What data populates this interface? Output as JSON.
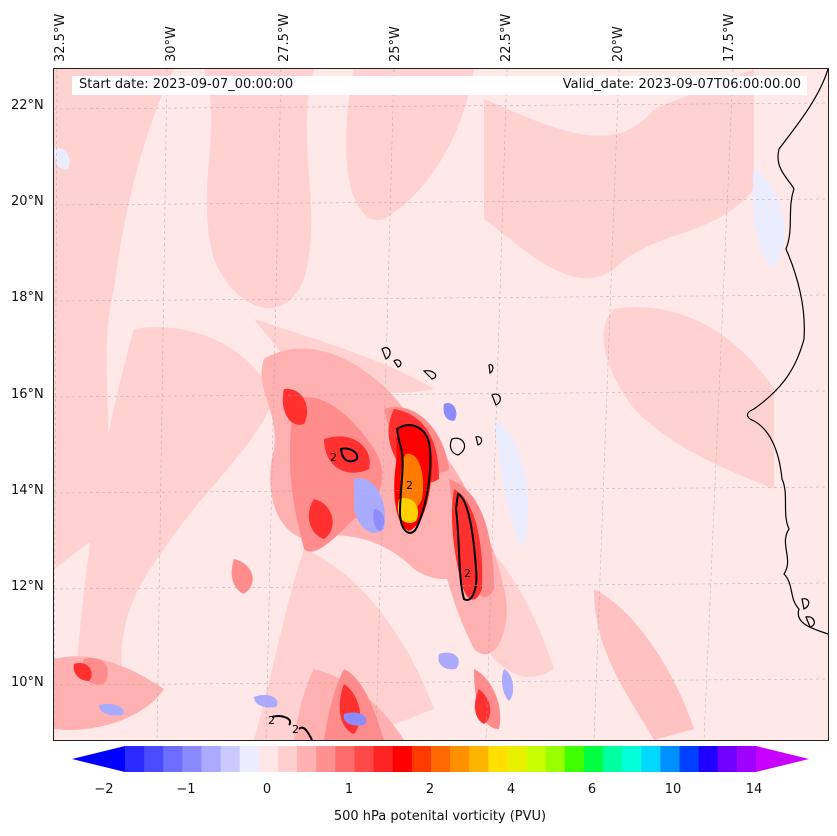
{
  "map": {
    "start_date_text": "Start date: 2023-09-07_00:00:00",
    "valid_date_text": "Valid_date: 2023-09-07T06:00:00.00",
    "longitude_labels": [
      "32.5°W",
      "30°W",
      "27.5°W",
      "25°W",
      "22.5°W",
      "20°W",
      "17.5°W"
    ],
    "latitude_labels": [
      "22°N",
      "20°N",
      "18°N",
      "16°N",
      "14°N",
      "12°N",
      "10°N"
    ],
    "contour_labels": [
      "2",
      "2",
      "2",
      "2",
      "2"
    ],
    "colors": {
      "coastline": "#000000",
      "background_shading": "#ffe8e8",
      "light_pink": "#ffcfcf",
      "pink": "#ffb0b0",
      "salmon": "#ff8c8c",
      "red": "#ff3030",
      "deep_red": "#ff0000",
      "orange": "#ff7a00",
      "yellow": "#ffd000",
      "light_blue": "#ececff",
      "blue": "#8c8cff"
    }
  },
  "colorbar": {
    "label": "500 hPa potenital vorticity (PVU)",
    "ticks": [
      "−2",
      "−1",
      "0",
      "1",
      "2",
      "4",
      "6",
      "10",
      "14"
    ],
    "colors": [
      "#0000ff",
      "#2a2aff",
      "#4a4aff",
      "#6c6cff",
      "#8a8aff",
      "#aaaaff",
      "#cacaff",
      "#ececff",
      "#ffe6e6",
      "#ffcfcf",
      "#ffb0b0",
      "#ff9090",
      "#ff6c6c",
      "#ff4848",
      "#ff2424",
      "#ff0000",
      "#ff3a00",
      "#ff6a00",
      "#ff9000",
      "#ffb400",
      "#ffe000",
      "#e8f000",
      "#c8ff00",
      "#98ff00",
      "#40ff00",
      "#00ff40",
      "#00ffa0",
      "#00ffd8",
      "#00d8ff",
      "#0090ff",
      "#0040ff",
      "#2000ff",
      "#7000ff",
      "#a000ff",
      "#c800ff"
    ]
  }
}
